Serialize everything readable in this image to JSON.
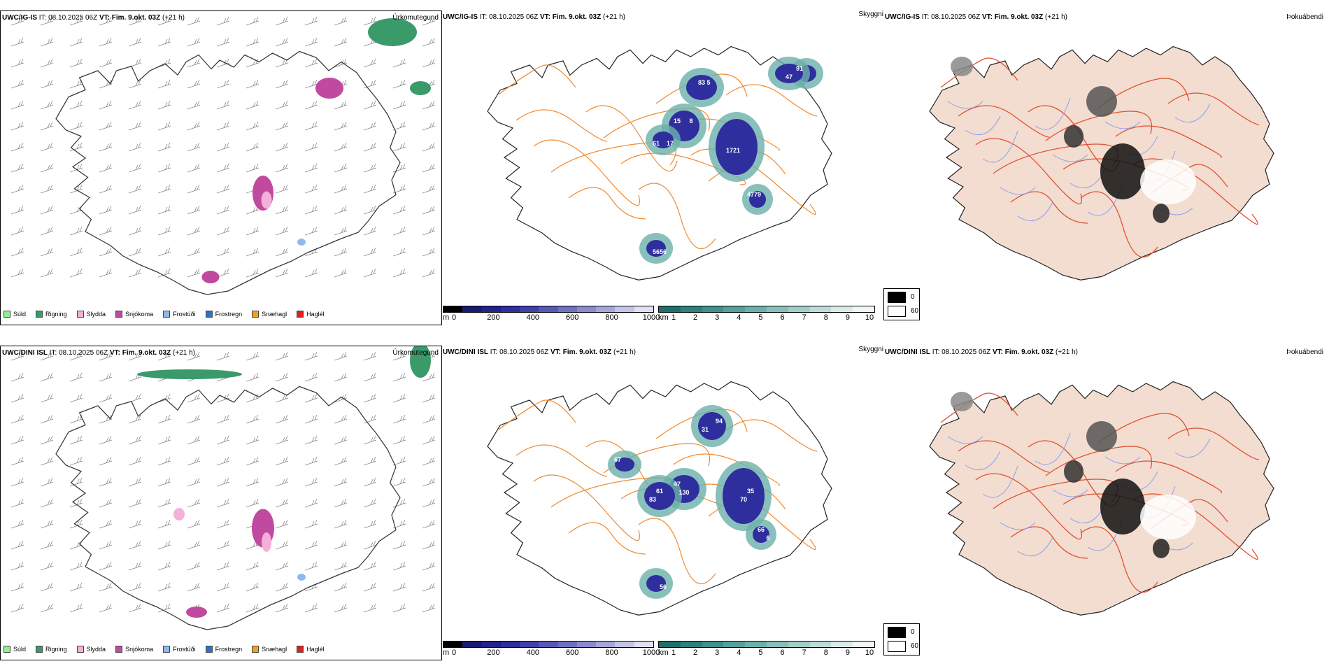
{
  "rows": [
    {
      "model": "UWC/IG-IS",
      "it_label": "IT:",
      "it_value": "08.10.2025 06Z",
      "vt_label": "VT:",
      "vt_value": "Fim. 9.okt. 03Z",
      "lead": "(+21 h)",
      "cloud_numbers": [
        "15",
        "21",
        "5",
        "61",
        "79",
        "56",
        "91",
        "47",
        "8",
        "17",
        "83",
        "17",
        "47",
        "56"
      ]
    },
    {
      "model": "UWC/DINI ISL",
      "it_label": "IT:",
      "it_value": "08.10.2025 06Z",
      "vt_label": "VT:",
      "vt_value": "Fim. 9.okt. 03Z",
      "lead": "(+21 h)",
      "cloud_numbers": [
        "47",
        "70",
        "94",
        "83",
        "66",
        "56",
        "67",
        "130",
        "35",
        "31",
        "61",
        "6"
      ]
    }
  ],
  "panel_types": {
    "precip": "Úrkomutegund",
    "visibility": "Skyggni",
    "fog": "Þokuábendi"
  },
  "precip_legend": [
    {
      "label": "Súld",
      "color": "#90ee90"
    },
    {
      "label": "Rigning",
      "color": "#3a9a6a"
    },
    {
      "label": "Slydda",
      "color": "#f4b0d8"
    },
    {
      "label": "Snjókoma",
      "color": "#c04aa0"
    },
    {
      "label": "Frostúði",
      "color": "#90b8f0"
    },
    {
      "label": "Frostregn",
      "color": "#3070c8"
    },
    {
      "label": "Snæhagl",
      "color": "#f0a020"
    },
    {
      "label": "Haglél",
      "color": "#e02020"
    }
  ],
  "cloud_base_scale": {
    "unit": "m",
    "ticks": [
      "0",
      "200",
      "400",
      "600",
      "800",
      "1000"
    ],
    "colors": [
      "#000000",
      "#1a1a70",
      "#22228a",
      "#2e2e9e",
      "#4040a8",
      "#5858b4",
      "#7070c0",
      "#8a8acc",
      "#a6a6d8",
      "#c4c4e6",
      "#e0e0f2"
    ]
  },
  "visibility_scale": {
    "unit": "km",
    "ticks": [
      "1",
      "2",
      "3",
      "4",
      "5",
      "6",
      "7",
      "8",
      "9",
      "10"
    ],
    "colors": [
      "#1f6f6a",
      "#2e807a",
      "#3f908a",
      "#55a09a",
      "#6cb0aa",
      "#86c0ba",
      "#a0cfc9",
      "#bcdcd8",
      "#d8ebe8",
      "#f0f7f6"
    ]
  },
  "fog_scale": {
    "values": [
      "0",
      "60"
    ],
    "colors": [
      "#000000",
      "#ffffff"
    ]
  }
}
